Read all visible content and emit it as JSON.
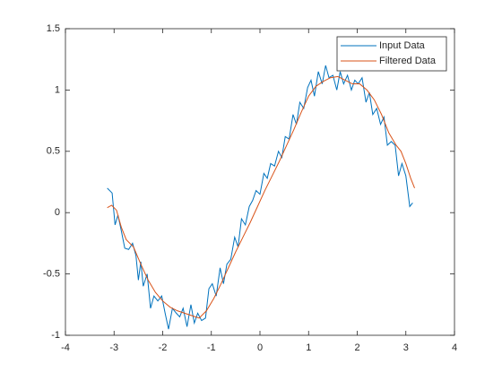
{
  "chart_data": {
    "type": "line",
    "x": [
      -3.14,
      -3.04,
      -2.98,
      -2.92,
      -2.85,
      -2.78,
      -2.7,
      -2.62,
      -2.55,
      -2.5,
      -2.45,
      -2.4,
      -2.32,
      -2.25,
      -2.18,
      -2.1,
      -2.02,
      -1.95,
      -1.88,
      -1.8,
      -1.72,
      -1.65,
      -1.58,
      -1.5,
      -1.42,
      -1.35,
      -1.28,
      -1.2,
      -1.12,
      -1.05,
      -0.98,
      -0.9,
      -0.82,
      -0.75,
      -0.68,
      -0.6,
      -0.52,
      -0.45,
      -0.38,
      -0.3,
      -0.22,
      -0.15,
      -0.08,
      0.0,
      0.08,
      0.15,
      0.22,
      0.3,
      0.38,
      0.45,
      0.52,
      0.6,
      0.68,
      0.75,
      0.82,
      0.9,
      0.98,
      1.05,
      1.12,
      1.2,
      1.28,
      1.35,
      1.42,
      1.5,
      1.58,
      1.65,
      1.72,
      1.8,
      1.88,
      1.95,
      2.02,
      2.1,
      2.18,
      2.25,
      2.32,
      2.4,
      2.48,
      2.55,
      2.62,
      2.7,
      2.78,
      2.85,
      2.92,
      3.0,
      3.08,
      3.14
    ],
    "series": [
      {
        "name": "Input Data",
        "color": "#0072bd",
        "values": [
          0.2,
          0.16,
          -0.1,
          -0.02,
          -0.15,
          -0.29,
          -0.3,
          -0.25,
          -0.35,
          -0.55,
          -0.4,
          -0.6,
          -0.5,
          -0.78,
          -0.68,
          -0.72,
          -0.68,
          -0.82,
          -0.95,
          -0.78,
          -0.82,
          -0.85,
          -0.78,
          -0.93,
          -0.75,
          -0.9,
          -0.82,
          -0.88,
          -0.86,
          -0.62,
          -0.58,
          -0.68,
          -0.45,
          -0.58,
          -0.42,
          -0.38,
          -0.2,
          -0.28,
          -0.05,
          -0.1,
          0.05,
          0.1,
          0.18,
          0.15,
          0.32,
          0.28,
          0.4,
          0.38,
          0.5,
          0.45,
          0.62,
          0.6,
          0.8,
          0.72,
          0.9,
          0.85,
          1.02,
          1.08,
          0.95,
          1.15,
          1.05,
          1.2,
          1.1,
          1.12,
          1.0,
          1.15,
          1.05,
          1.12,
          1.0,
          1.08,
          1.05,
          1.1,
          0.9,
          0.98,
          0.8,
          0.85,
          0.72,
          0.78,
          0.55,
          0.58,
          0.55,
          0.3,
          0.4,
          0.3,
          0.05,
          0.08
        ]
      },
      {
        "name": "Filtered Data",
        "color": "#d95319",
        "x": [
          -3.14,
          -3.05,
          -2.95,
          -2.85,
          -2.75,
          -2.6,
          -2.45,
          -2.3,
          -2.15,
          -2.0,
          -1.85,
          -1.7,
          -1.55,
          -1.4,
          -1.25,
          -1.1,
          -0.95,
          -0.8,
          -0.65,
          -0.5,
          -0.35,
          -0.2,
          -0.05,
          0.1,
          0.25,
          0.4,
          0.55,
          0.7,
          0.85,
          1.0,
          1.15,
          1.3,
          1.45,
          1.6,
          1.75,
          1.9,
          2.05,
          2.2,
          2.35,
          2.5,
          2.65,
          2.8,
          2.9,
          3.0,
          3.1,
          3.18
        ],
        "values": [
          0.04,
          0.06,
          0.02,
          -0.12,
          -0.22,
          -0.28,
          -0.42,
          -0.55,
          -0.65,
          -0.72,
          -0.77,
          -0.8,
          -0.82,
          -0.84,
          -0.86,
          -0.8,
          -0.7,
          -0.58,
          -0.45,
          -0.32,
          -0.2,
          -0.08,
          0.05,
          0.18,
          0.3,
          0.42,
          0.55,
          0.68,
          0.82,
          0.95,
          1.03,
          1.07,
          1.1,
          1.11,
          1.08,
          1.05,
          1.05,
          1.0,
          0.92,
          0.8,
          0.65,
          0.55,
          0.5,
          0.4,
          0.28,
          0.2
        ]
      }
    ],
    "xlim": [
      -4,
      4
    ],
    "xticks": [
      -4,
      -3,
      -2,
      -1,
      0,
      1,
      2,
      3,
      4
    ],
    "ylim": [
      -1,
      1.5
    ],
    "yticks": [
      -1,
      -0.5,
      0,
      0.5,
      1,
      1.5
    ],
    "legend": "northeast"
  }
}
